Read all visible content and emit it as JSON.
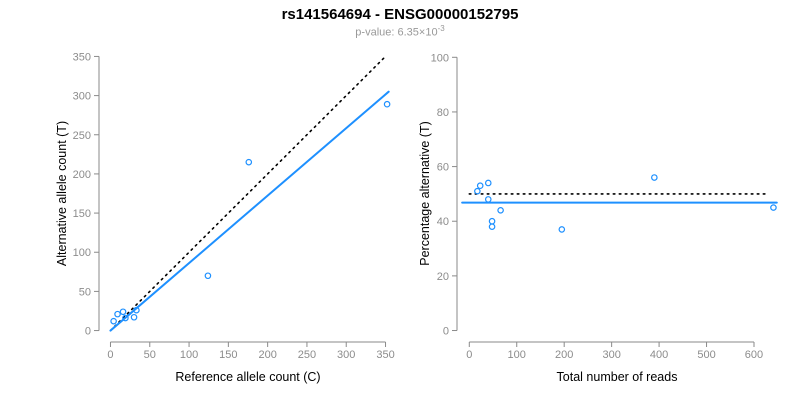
{
  "header": {
    "title": "rs141564694 - ENSG00000152795",
    "subtitle_prefix": "p-value: 6.35×10",
    "subtitle_exponent": "-3"
  },
  "colors": {
    "point_blue": "#1E90FF",
    "line_blue": "#1E90FF",
    "dotted_black": "#000000",
    "axis_gray": "#8a8a8a",
    "tick_label_gray": "#8c8c8c",
    "axis_label_black": "#000000",
    "subtitle_gray": "#999999"
  },
  "chart_data": [
    {
      "type": "scatter",
      "xlabel": "Reference allele count (C)",
      "ylabel": "Alternative allele count (T)",
      "xlim": [
        0,
        350
      ],
      "ylim": [
        0,
        350
      ],
      "xticks": [
        0,
        50,
        100,
        150,
        200,
        250,
        300,
        350
      ],
      "yticks": [
        0,
        50,
        100,
        150,
        200,
        250,
        300,
        350
      ],
      "grid": false,
      "points": [
        [
          4,
          12
        ],
        [
          9,
          21
        ],
        [
          16,
          24
        ],
        [
          19,
          16
        ],
        [
          30,
          17
        ],
        [
          33,
          26
        ],
        [
          124,
          70
        ],
        [
          176,
          215
        ],
        [
          352,
          289
        ]
      ],
      "lines": [
        {
          "name": "identity-line",
          "style": "dotted",
          "color": "#000000",
          "coords": [
            [
              0,
              0
            ],
            [
              348,
              348
            ]
          ]
        },
        {
          "name": "regression-line",
          "style": "solid",
          "color": "#1E90FF",
          "coords": [
            [
              0,
              0
            ],
            [
              354,
              305
            ]
          ]
        }
      ]
    },
    {
      "type": "scatter",
      "xlabel": "Total number of reads",
      "ylabel": "Percentage alternative (T)",
      "xlim": [
        0,
        600
      ],
      "ylim": [
        0,
        100
      ],
      "xticks": [
        0,
        100,
        200,
        300,
        400,
        500,
        600
      ],
      "yticks": [
        0,
        20,
        40,
        60,
        80,
        100
      ],
      "grid": false,
      "points": [
        [
          17,
          51
        ],
        [
          23,
          53
        ],
        [
          40,
          54
        ],
        [
          40,
          48
        ],
        [
          48,
          40
        ],
        [
          48,
          38
        ],
        [
          66,
          44
        ],
        [
          195,
          37
        ],
        [
          390,
          56
        ],
        [
          641,
          45
        ]
      ],
      "lines": [
        {
          "name": "expected-50-percent-line",
          "style": "dotted",
          "color": "#000000",
          "coords": [
            [
              0,
              50
            ],
            [
              628,
              50
            ]
          ]
        },
        {
          "name": "mean-percentage-line",
          "style": "solid",
          "color": "#1E90FF",
          "coords": [
            [
              -15,
              46.8
            ],
            [
              648,
              46.8
            ]
          ]
        }
      ]
    }
  ]
}
